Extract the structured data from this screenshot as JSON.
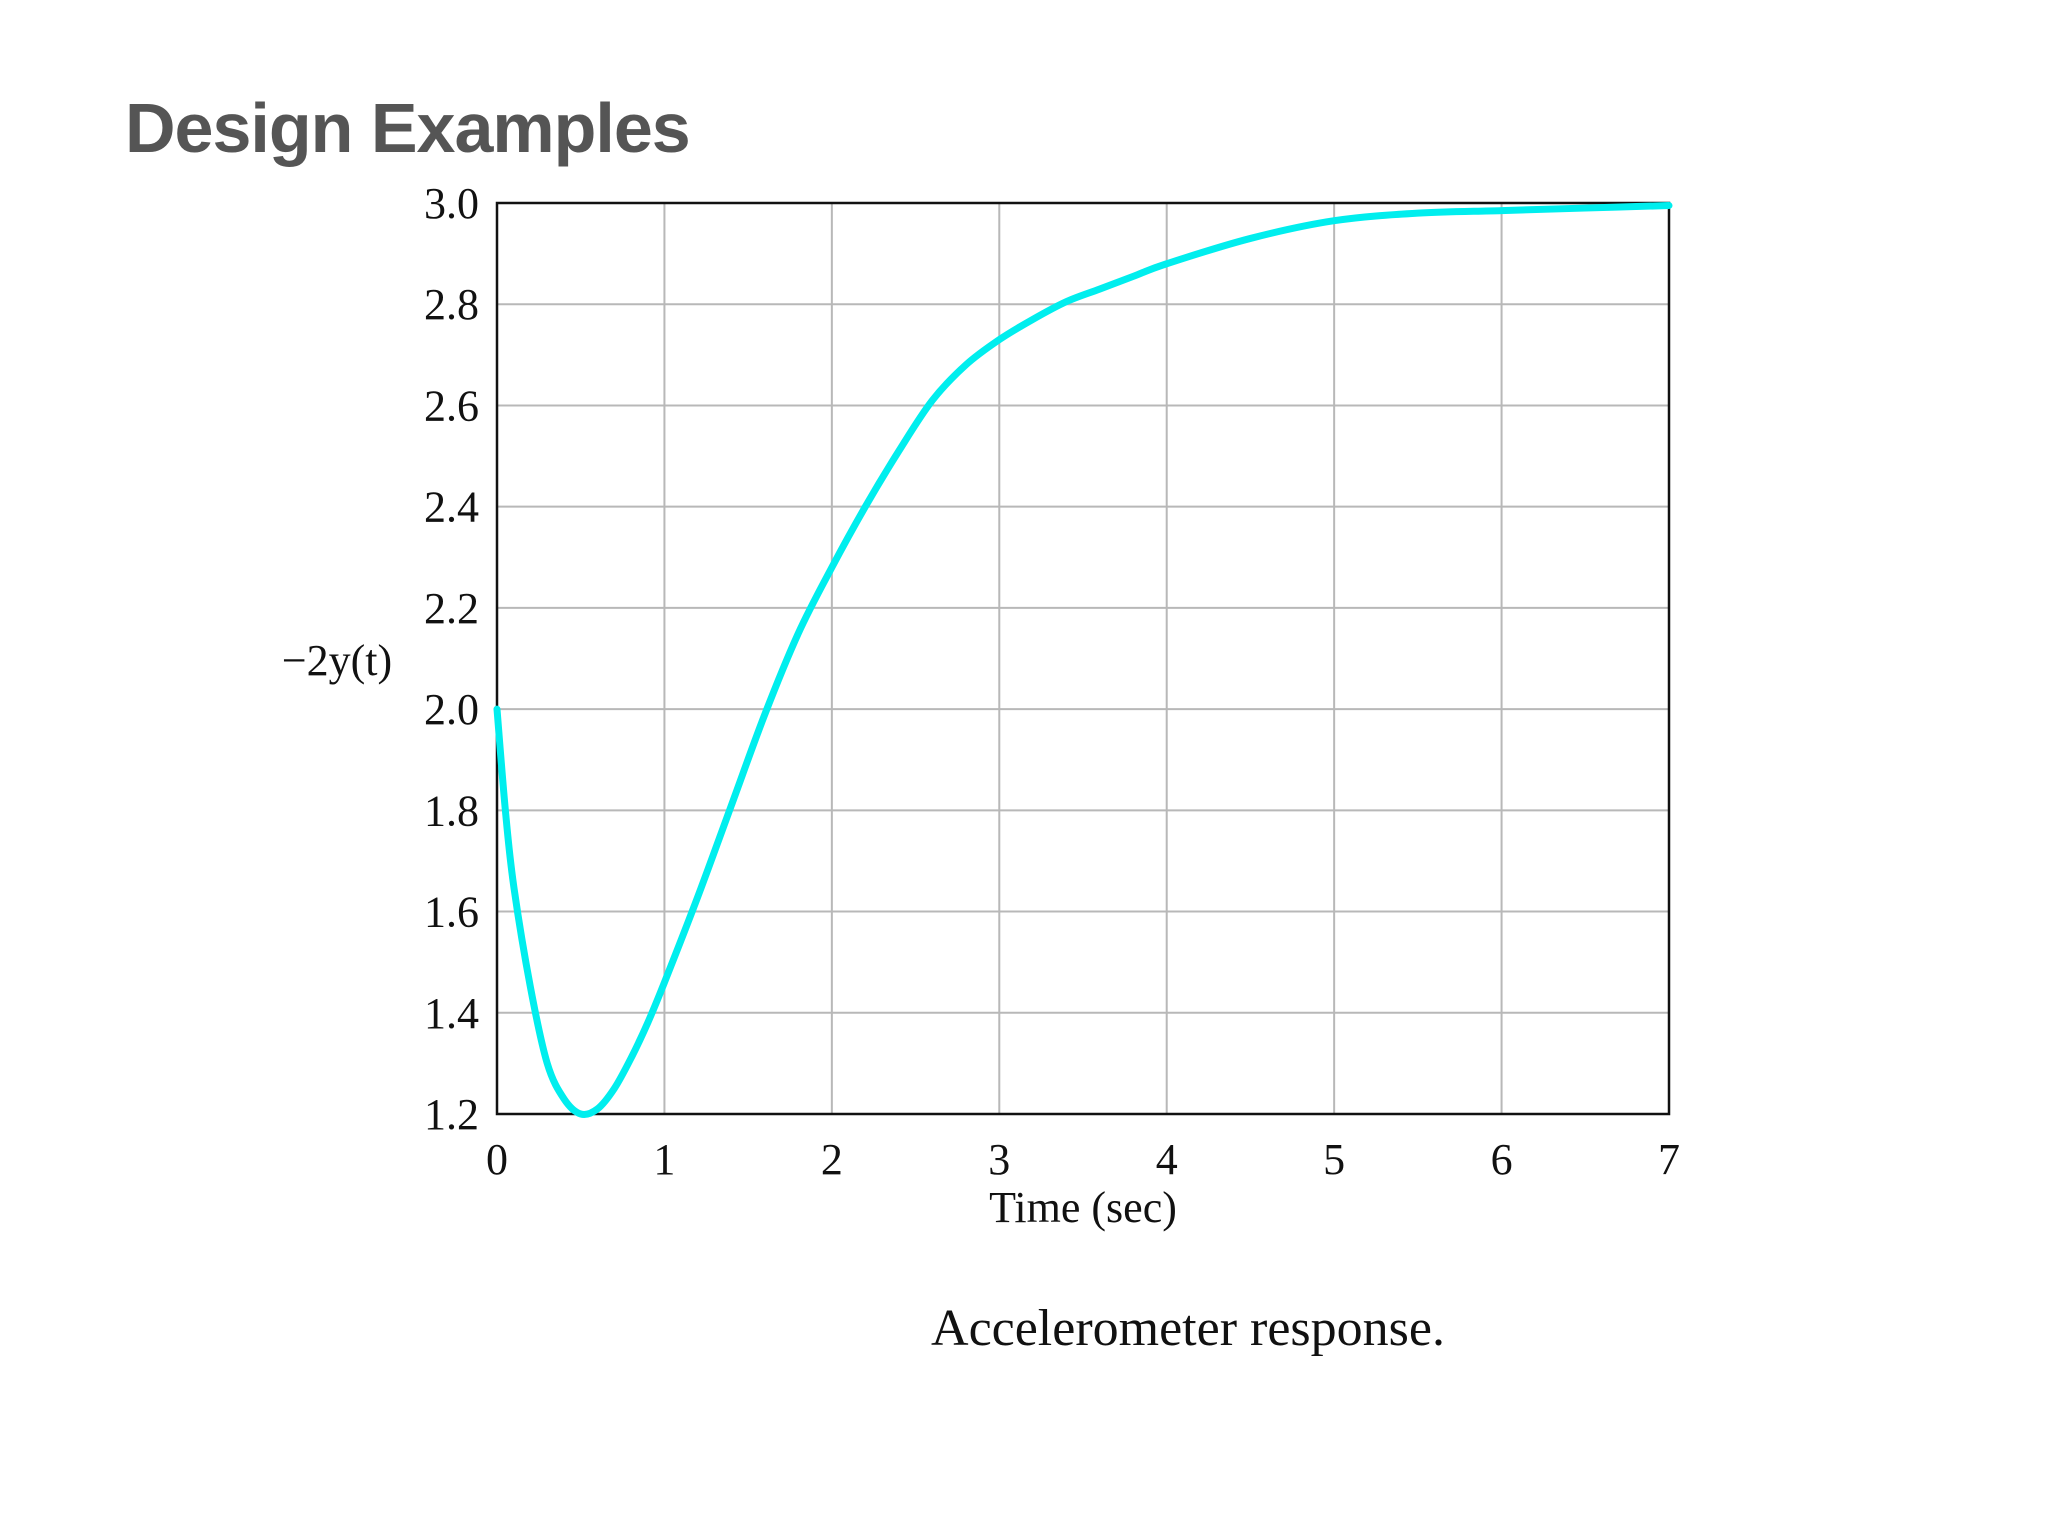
{
  "slide": {
    "title": "Design Examples"
  },
  "chart_data": {
    "type": "line",
    "title": "",
    "xlabel": "Time (sec)",
    "ylabel": "−2y(t)",
    "caption": "Accelerometer response.",
    "xlim": [
      0,
      7
    ],
    "ylim": [
      1.2,
      3.0
    ],
    "xticks": [
      0,
      1,
      2,
      3,
      4,
      5,
      6,
      7
    ],
    "xtick_labels": [
      "0",
      "1",
      "2",
      "3",
      "4",
      "5",
      "6",
      "7"
    ],
    "yticks": [
      1.2,
      1.4,
      1.6,
      1.8,
      2.0,
      2.2,
      2.4,
      2.6,
      2.8,
      3.0
    ],
    "ytick_labels": [
      "1.2",
      "1.4",
      "1.6",
      "1.8",
      "2.0",
      "2.2",
      "2.4",
      "2.6",
      "2.8",
      "3.0"
    ],
    "grid": true,
    "series": [
      {
        "color": "#00eeee",
        "x": [
          0,
          0.05,
          0.1,
          0.2,
          0.3,
          0.4,
          0.5,
          0.6,
          0.7,
          0.8,
          0.9,
          1.0,
          1.2,
          1.4,
          1.6,
          1.8,
          2.0,
          2.2,
          2.4,
          2.6,
          2.8,
          3.0,
          3.2,
          3.4,
          3.6,
          3.8,
          4.0,
          4.5,
          5.0,
          5.5,
          6.0,
          6.5,
          7.0
        ],
        "y": [
          2.0,
          1.8,
          1.65,
          1.45,
          1.3,
          1.23,
          1.2,
          1.21,
          1.25,
          1.31,
          1.38,
          1.46,
          1.63,
          1.81,
          1.99,
          2.15,
          2.28,
          2.4,
          2.51,
          2.61,
          2.68,
          2.73,
          2.77,
          2.805,
          2.83,
          2.855,
          2.88,
          2.93,
          2.965,
          2.98,
          2.985,
          2.99,
          2.995
        ]
      }
    ]
  }
}
